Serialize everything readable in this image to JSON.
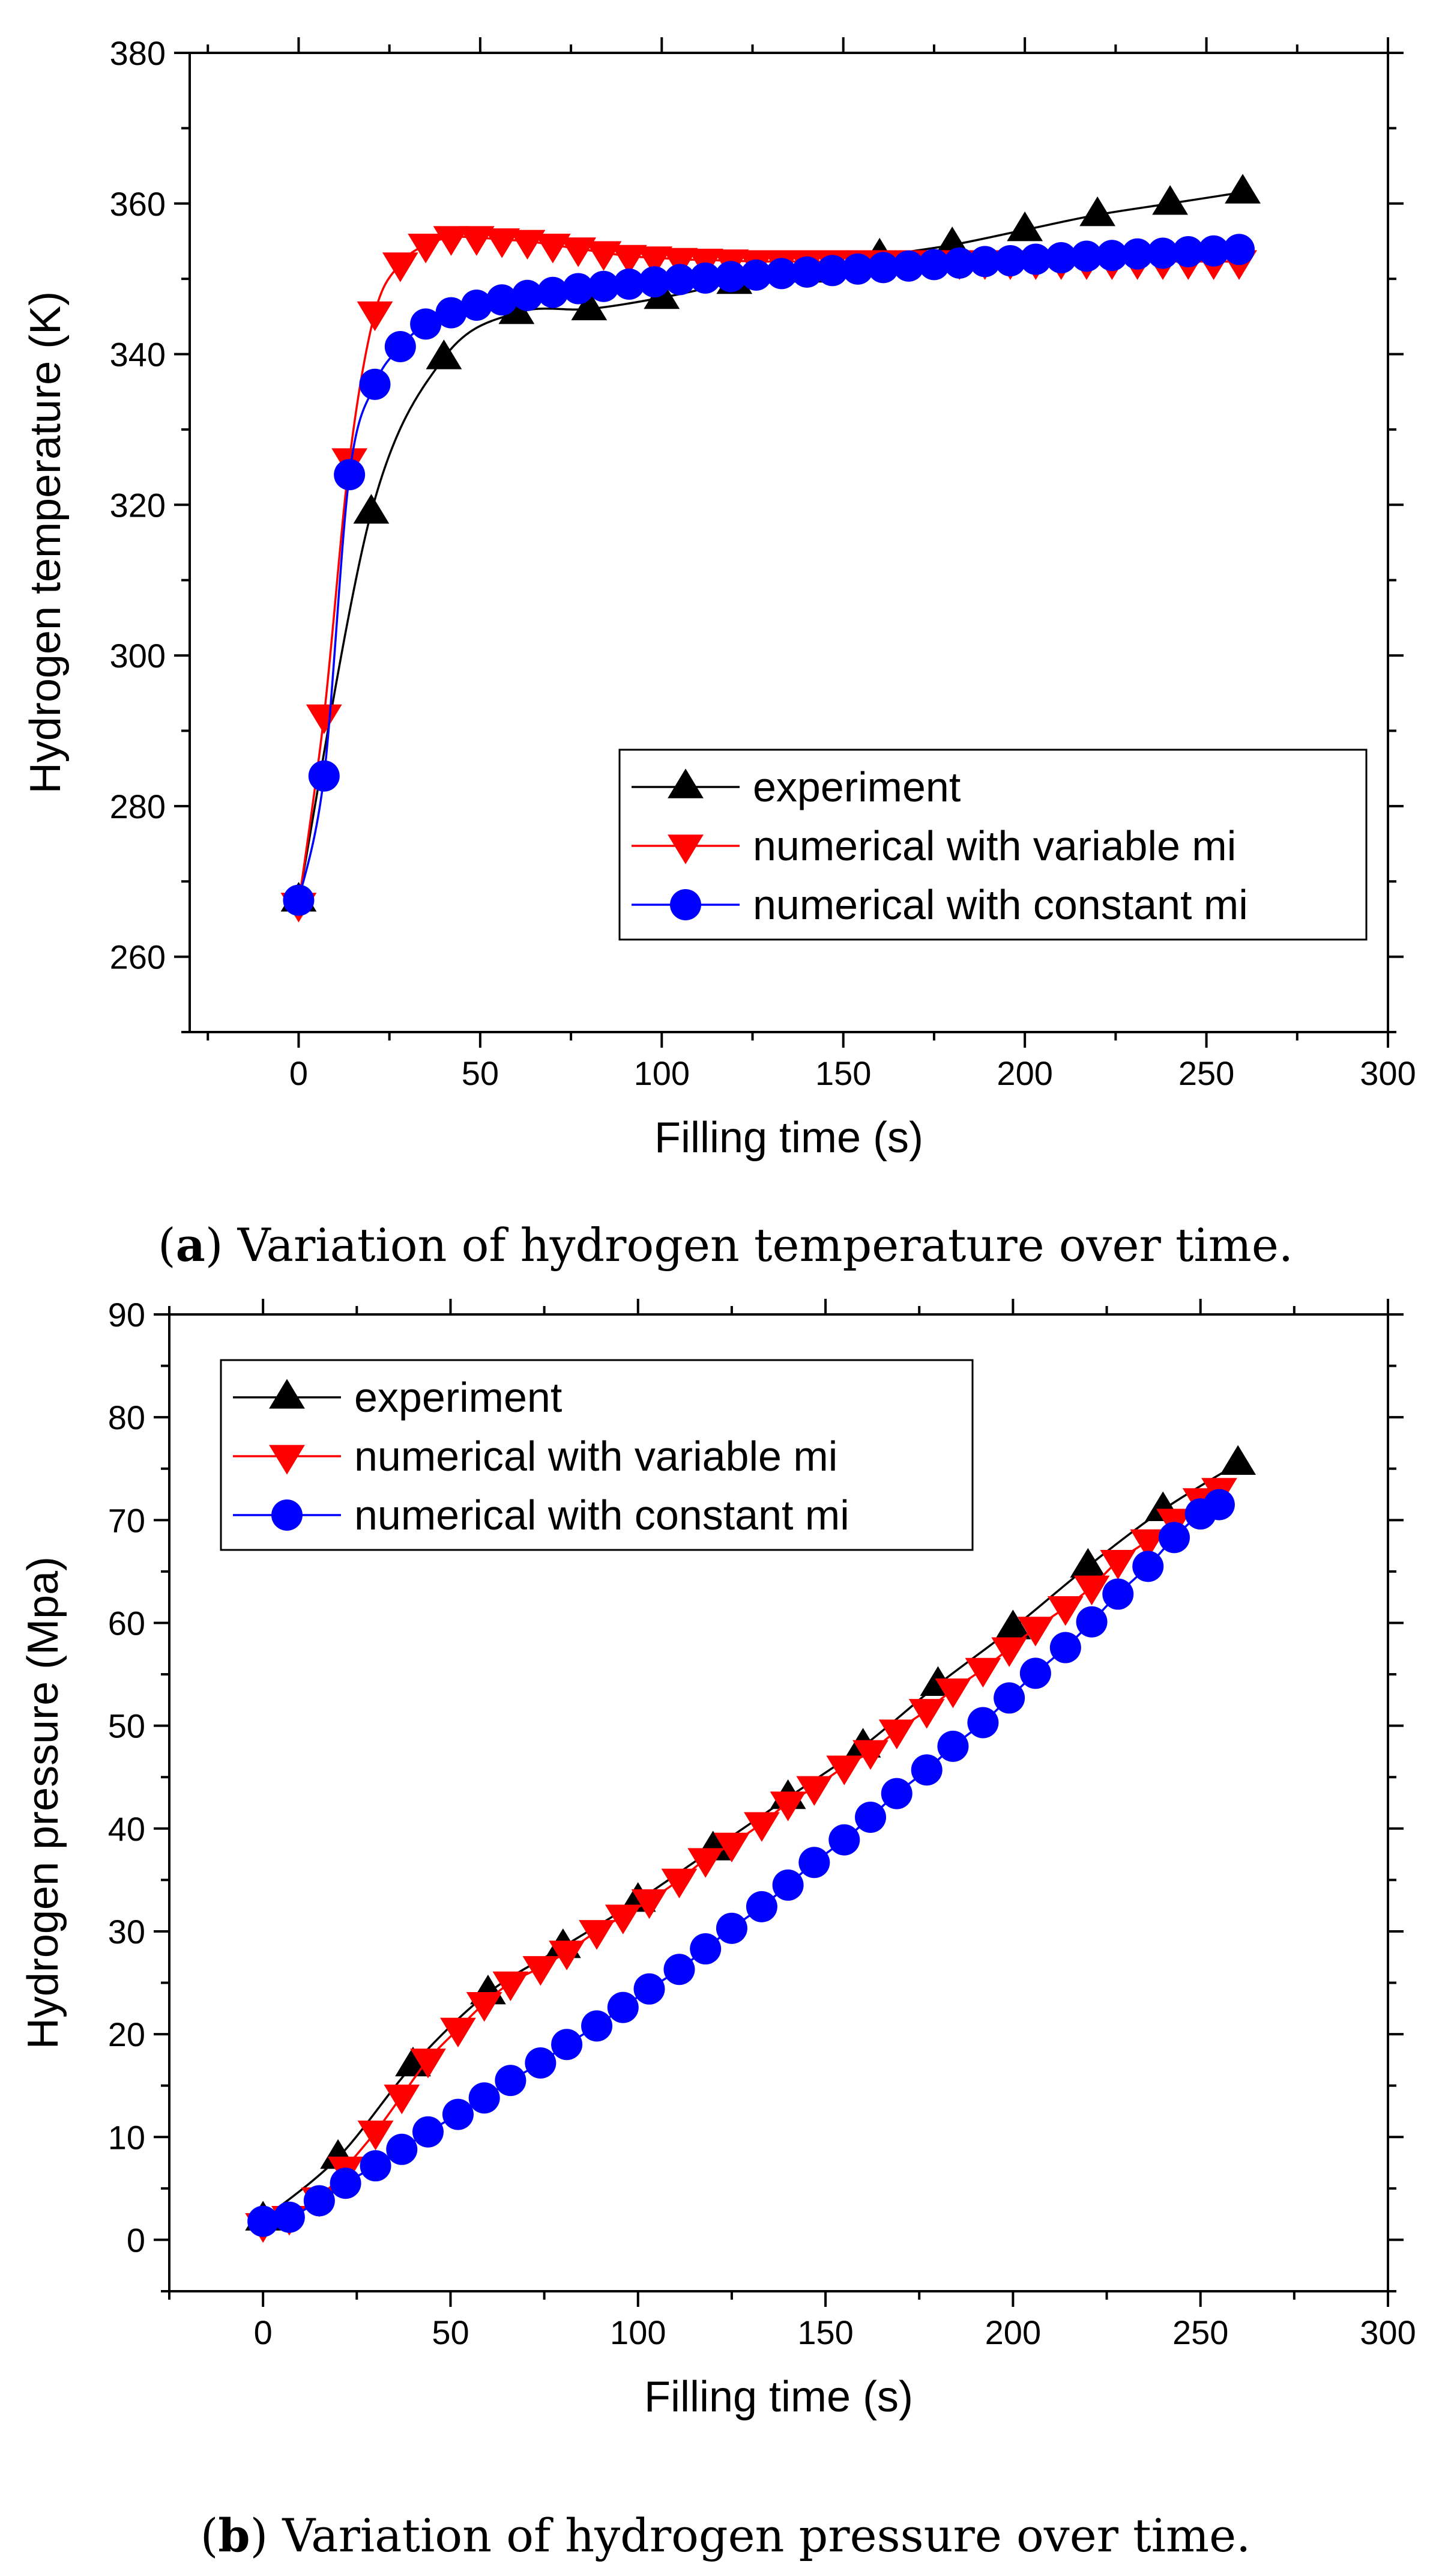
{
  "chart_data": [
    {
      "type": "line",
      "panel": "a",
      "title": "",
      "xlabel": "Filling time (s)",
      "ylabel": "Hydrogen temperature (K)",
      "xlim": [
        -30,
        300
      ],
      "ylim": [
        250,
        380
      ],
      "xticks": [
        0,
        50,
        100,
        150,
        200,
        250,
        300
      ],
      "yticks": [
        260,
        280,
        300,
        320,
        340,
        360,
        380
      ],
      "legend_position": "lower-right",
      "series": [
        {
          "name": "experiment",
          "color": "#000000",
          "marker": "triangle-up",
          "x": [
            0,
            20,
            40,
            60,
            80,
            100,
            120,
            140,
            160,
            180,
            200,
            220,
            240,
            260
          ],
          "y": [
            267.5,
            319,
            339.5,
            345.5,
            346,
            347.5,
            349.5,
            351,
            353,
            354.5,
            356.5,
            358.5,
            360,
            361.5
          ]
        },
        {
          "name": "numerical with variable mi",
          "color": "#ff0000",
          "marker": "triangle-down",
          "x": [
            0,
            7,
            14,
            21,
            28,
            35,
            42,
            49,
            56,
            63,
            70,
            77,
            84,
            91,
            98,
            105,
            112,
            119,
            126,
            133,
            140,
            147,
            154,
            161,
            168,
            175,
            182,
            189,
            196,
            203,
            210,
            217,
            224,
            231,
            238,
            245,
            252,
            259
          ],
          "y": [
            267,
            292,
            326,
            345.5,
            352,
            354.5,
            355.5,
            355.5,
            355.2,
            355,
            354.5,
            354,
            353.5,
            353,
            352.8,
            352.6,
            352.5,
            352.4,
            352.3,
            352.3,
            352.3,
            352.3,
            352.3,
            352.3,
            352.3,
            352.3,
            352.3,
            352.3,
            352.3,
            352.3,
            352.3,
            352.3,
            352.3,
            352.3,
            352.3,
            352.3,
            352.3,
            352.3
          ]
        },
        {
          "name": "numerical with constant mi",
          "color": "#0000ff",
          "marker": "circle",
          "x": [
            0,
            7,
            14,
            21,
            28,
            35,
            42,
            49,
            56,
            63,
            70,
            77,
            84,
            91,
            98,
            105,
            112,
            119,
            126,
            133,
            140,
            147,
            154,
            161,
            168,
            175,
            182,
            189,
            196,
            203,
            210,
            217,
            224,
            231,
            238,
            245,
            252,
            259
          ],
          "y": [
            267.5,
            284,
            324,
            336,
            341,
            344,
            345.5,
            346.5,
            347.2,
            347.8,
            348.2,
            348.7,
            349,
            349.3,
            349.6,
            349.9,
            350.1,
            350.3,
            350.5,
            350.7,
            350.9,
            351.1,
            351.3,
            351.5,
            351.7,
            351.9,
            352.1,
            352.3,
            352.4,
            352.6,
            352.8,
            353,
            353.1,
            353.3,
            353.4,
            353.6,
            353.7,
            353.9
          ]
        }
      ]
    },
    {
      "type": "line",
      "panel": "b",
      "title": "",
      "xlabel": "Filling time (s)",
      "ylabel": "Hydrogen pressure (Mpa)",
      "xlim": [
        -25,
        300
      ],
      "ylim": [
        -5,
        90
      ],
      "xticks": [
        0,
        50,
        100,
        150,
        200,
        250,
        300
      ],
      "yticks": [
        0,
        10,
        20,
        30,
        40,
        50,
        60,
        70,
        80,
        90
      ],
      "legend_position": "upper-left",
      "series": [
        {
          "name": "experiment",
          "color": "#000000",
          "marker": "triangle-up",
          "x": [
            0,
            20,
            40,
            60,
            80,
            100,
            120,
            140,
            160,
            180,
            200,
            220,
            240,
            260
          ],
          "y": [
            2,
            8,
            17,
            24,
            28.5,
            33,
            38,
            43,
            48,
            54,
            59.5,
            65.5,
            71,
            75.5
          ]
        },
        {
          "name": "numerical with variable mi",
          "color": "#ff0000",
          "marker": "triangle-down",
          "x": [
            0,
            7,
            15,
            22,
            30,
            37,
            44,
            52,
            59,
            66,
            74,
            81,
            89,
            96,
            103,
            111,
            118,
            125,
            133,
            140,
            147,
            155,
            162,
            169,
            177,
            184,
            192,
            199,
            206,
            214,
            221,
            228,
            236,
            243,
            250,
            255
          ],
          "y": [
            1.5,
            2.2,
            4,
            7,
            10.5,
            14,
            17.5,
            20.5,
            23,
            25,
            26.5,
            28,
            30,
            31.5,
            33,
            35,
            37,
            38.5,
            40.5,
            42.5,
            44,
            46,
            47.5,
            49.5,
            51.5,
            53.5,
            55.5,
            57.5,
            59.5,
            61.5,
            63.5,
            66,
            68,
            70,
            72,
            73
          ]
        },
        {
          "name": "numerical with constant mi",
          "color": "#0000ff",
          "marker": "circle",
          "x": [
            0,
            7,
            15,
            22,
            30,
            37,
            44,
            52,
            59,
            66,
            74,
            81,
            89,
            96,
            103,
            111,
            118,
            125,
            133,
            140,
            147,
            155,
            162,
            169,
            177,
            184,
            192,
            199,
            206,
            214,
            221,
            228,
            236,
            243,
            250,
            255
          ],
          "y": [
            1.8,
            2.2,
            3.8,
            5.5,
            7.2,
            8.8,
            10.5,
            12.2,
            13.8,
            15.5,
            17.2,
            19,
            20.8,
            22.6,
            24.4,
            26.3,
            28.3,
            30.3,
            32.4,
            34.5,
            36.7,
            38.9,
            41.1,
            43.4,
            45.7,
            48,
            50.3,
            52.7,
            55.1,
            57.6,
            60.1,
            62.8,
            65.5,
            68.3,
            70.6,
            71.5
          ]
        }
      ]
    }
  ],
  "captions": [
    {
      "tag": "(a)",
      "text": "Variation of hydrogen temperature over time."
    },
    {
      "tag": "(b)",
      "text": "Variation of hydrogen pressure over time."
    }
  ]
}
